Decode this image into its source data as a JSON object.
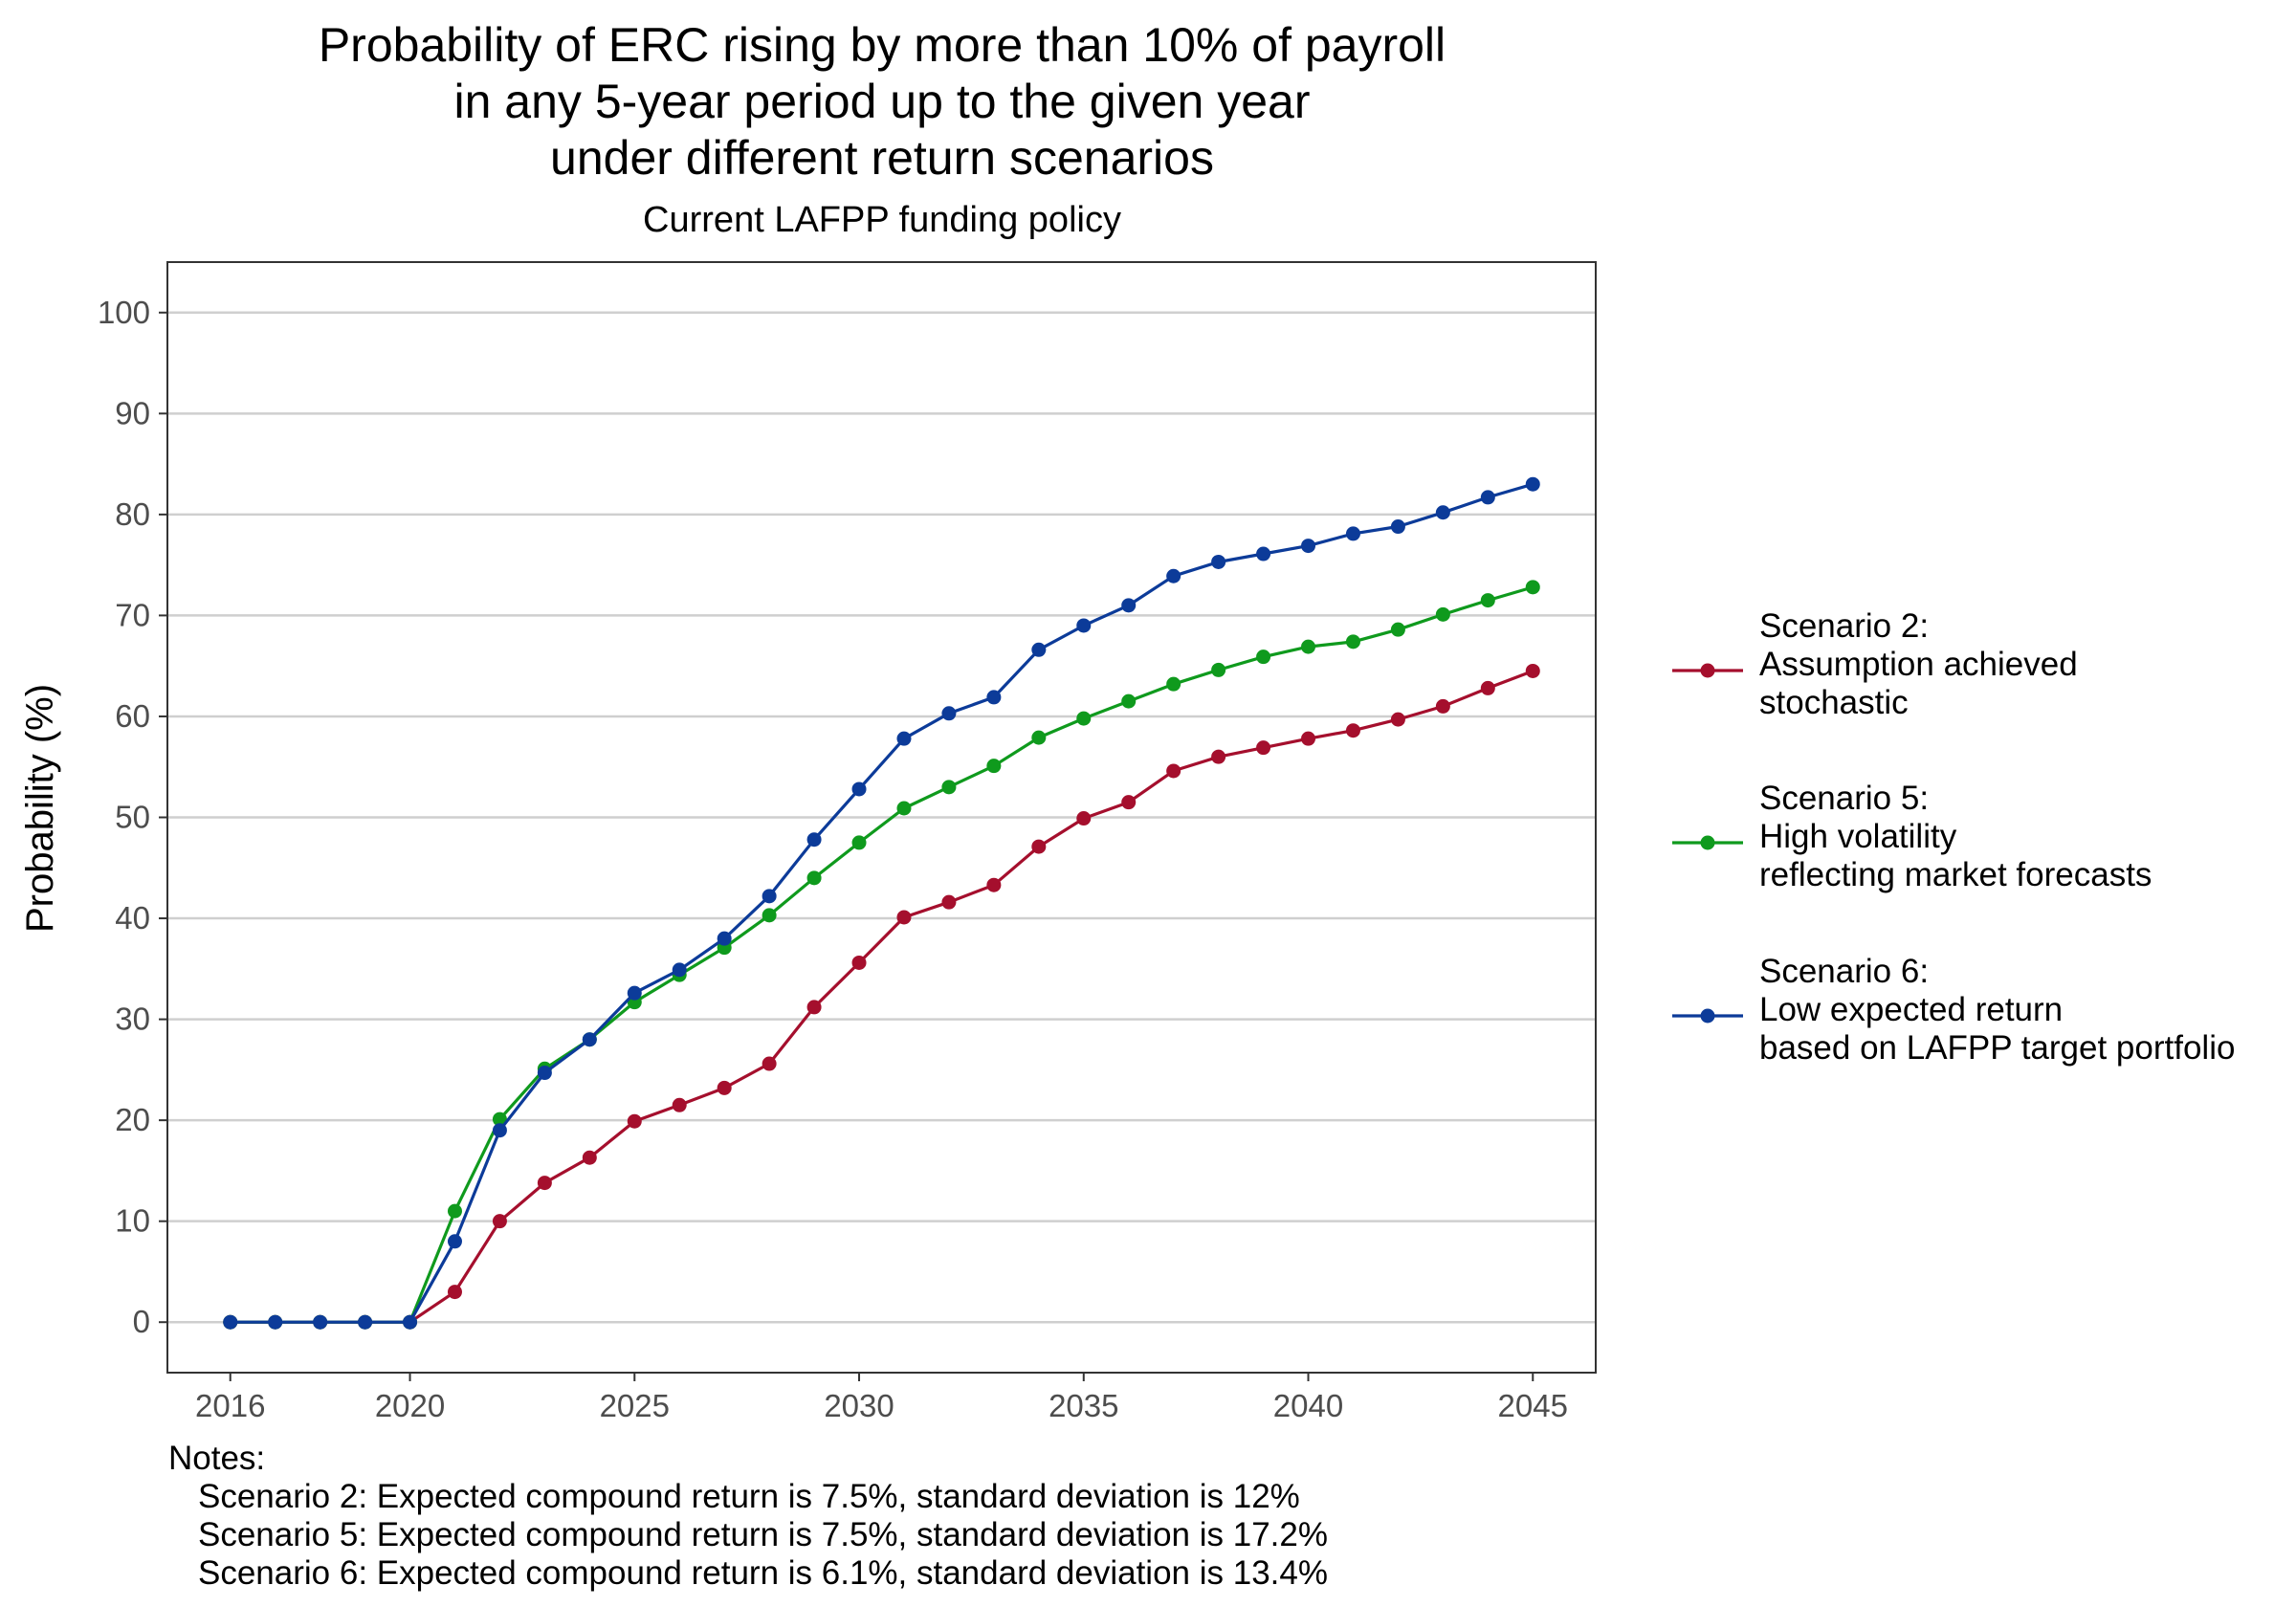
{
  "chart_data": {
    "type": "line",
    "title": [
      "Probability of ERC rising by more than 10% of payroll",
      "in any 5-year period up to the given year",
      "under different return scenarios"
    ],
    "subtitle": "Current LAFPP funding policy",
    "xlabel": "",
    "ylabel": "Probability (%)",
    "xlim": [
      2016,
      2045
    ],
    "ylim": [
      -5,
      105
    ],
    "x_ticks": [
      2016,
      2020,
      2025,
      2030,
      2035,
      2040,
      2045
    ],
    "y_ticks": [
      0,
      10,
      20,
      30,
      40,
      50,
      60,
      70,
      80,
      90,
      100
    ],
    "grid": "horizontal",
    "legend_position": "right",
    "x": [
      2016,
      2017,
      2018,
      2019,
      2020,
      2021,
      2022,
      2023,
      2024,
      2025,
      2026,
      2027,
      2028,
      2029,
      2030,
      2031,
      2032,
      2033,
      2034,
      2035,
      2036,
      2037,
      2038,
      2039,
      2040,
      2041,
      2042,
      2043,
      2044,
      2045
    ],
    "series": [
      {
        "name": [
          "Scenario 2:",
          "Assumption achieved",
          "stochastic"
        ],
        "color": "#a50f2d",
        "values": [
          0,
          0,
          0,
          0,
          0,
          3,
          10,
          13.8,
          16.3,
          19.9,
          21.5,
          23.2,
          25.6,
          31.2,
          35.6,
          40.1,
          41.6,
          43.3,
          47.1,
          49.9,
          51.5,
          54.6,
          56,
          56.9,
          57.8,
          58.6,
          59.7,
          61,
          62.8,
          64.5
        ]
      },
      {
        "name": [
          "Scenario 5:",
          "High volatility",
          "reflecting market forecasts"
        ],
        "color": "#0f9a1d",
        "values": [
          0,
          0,
          0,
          0,
          0,
          11,
          20.1,
          25.1,
          28,
          31.7,
          34.4,
          37.1,
          40.3,
          44,
          47.5,
          50.9,
          53,
          55.1,
          57.9,
          59.8,
          61.5,
          63.2,
          64.6,
          65.9,
          66.9,
          67.4,
          68.6,
          70.1,
          71.5,
          72.8
        ]
      },
      {
        "name": [
          "Scenario 6:",
          "Low expected return",
          "based on LAFPP target portfolio"
        ],
        "color": "#0c3b99",
        "values": [
          0,
          0,
          0,
          0,
          0,
          8,
          19,
          24.7,
          28,
          32.6,
          34.9,
          38,
          42.2,
          47.8,
          52.8,
          57.8,
          60.3,
          61.9,
          66.6,
          69,
          71,
          73.9,
          75.3,
          76.1,
          76.9,
          78.1,
          78.8,
          80.2,
          81.7,
          83
        ]
      }
    ],
    "notes": {
      "heading": "Notes:",
      "lines": [
        "Scenario 2: Expected compound return is 7.5%, standard deviation is 12%",
        "Scenario 5: Expected compound return is 7.5%, standard deviation is 17.2%",
        "Scenario 6: Expected compound return is 6.1%, standard deviation is 13.4%"
      ]
    }
  }
}
